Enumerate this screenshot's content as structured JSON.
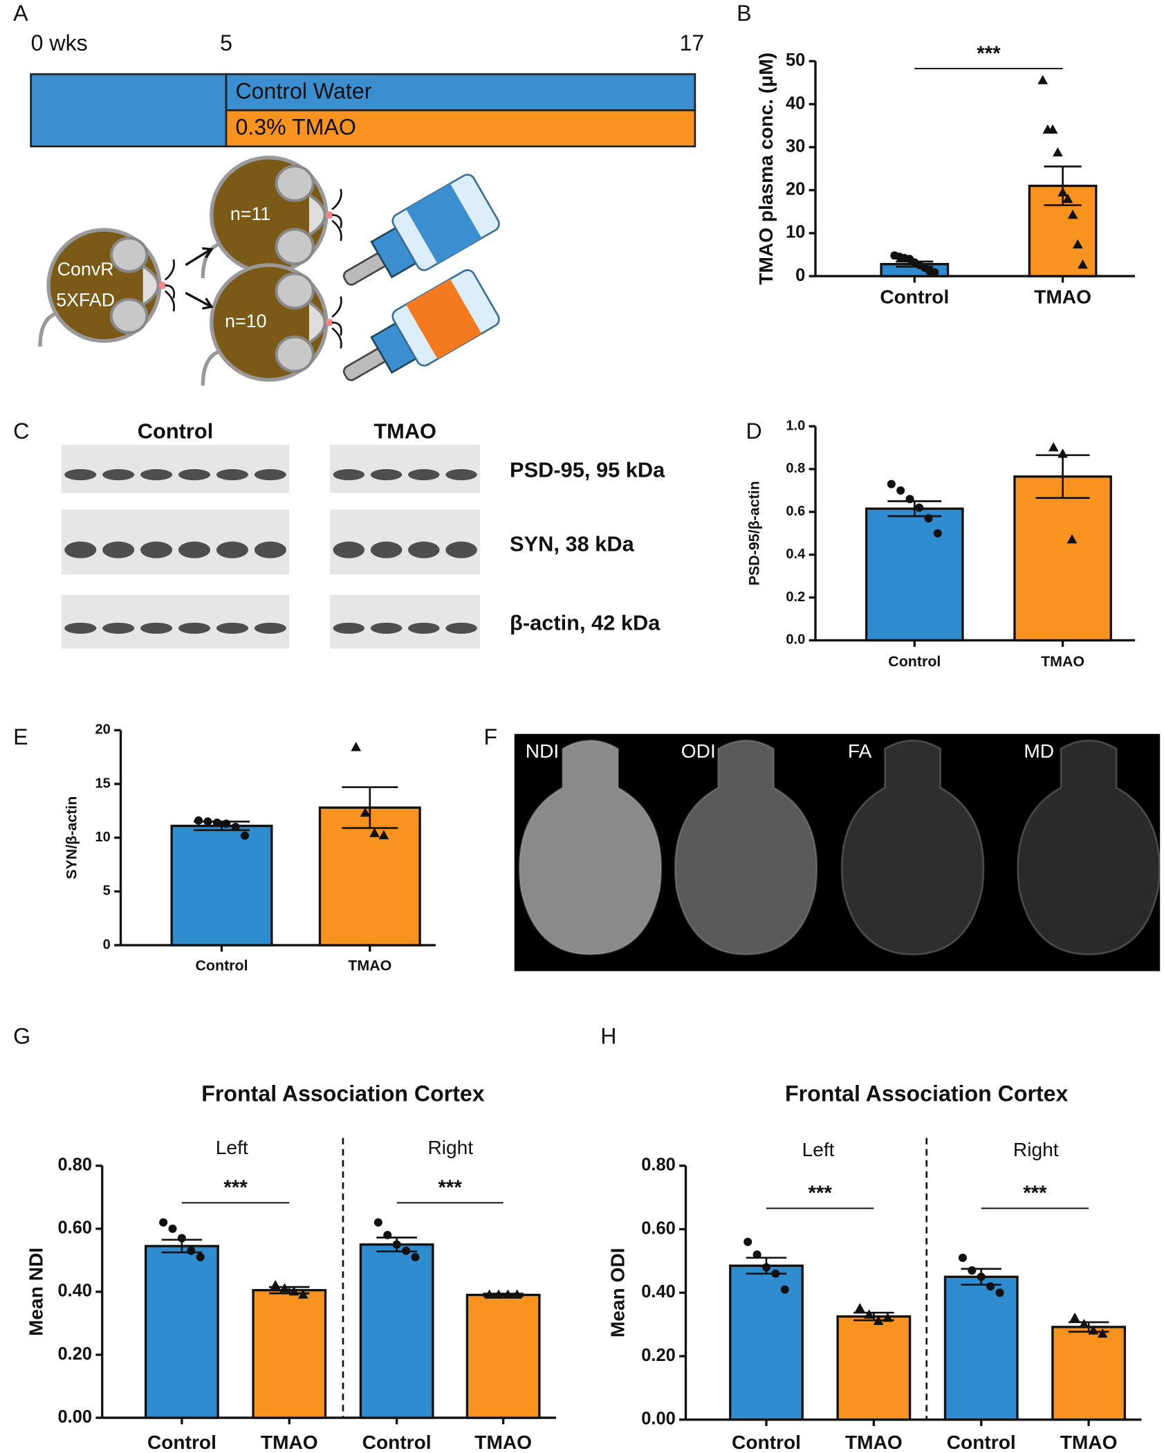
{
  "panel_labels": [
    "A",
    "B",
    "C",
    "D",
    "E",
    "F",
    "G",
    "H"
  ],
  "timeline": {
    "xlim": [
      0,
      17
    ],
    "ticks": [
      {
        "value": 0,
        "label": "0 wks"
      },
      5,
      17
    ],
    "rows": [
      "Control Water",
      "0.3% TMAO"
    ]
  },
  "cohorts": {
    "source": [
      "ConvR",
      "5XFAD"
    ],
    "groups": [
      "n=11",
      "n=10"
    ]
  },
  "western_blot": {
    "groups": [
      "Control",
      "TMAO"
    ],
    "bands": [
      "PSD-95, 95 kDa",
      "SYN, 38 kDa",
      "β-actin, 42 kDa"
    ]
  },
  "mri": {
    "maps": [
      "NDI",
      "ODI",
      "FA",
      "MD"
    ]
  },
  "chart_data": [
    {
      "panel": "B",
      "type": "bar",
      "ylabel": "TMAO plasma conc. (μM)",
      "categories": [
        "Control",
        "TMAO"
      ],
      "values": [
        2.8,
        21
      ],
      "errors": [
        0.6,
        4.5
      ],
      "points": [
        [
          4.8,
          4.5,
          4.2,
          4.0,
          3.2,
          2.6,
          2.0,
          1.2,
          0.9
        ],
        [
          45.5,
          34,
          34,
          28.7,
          19.4,
          17.9,
          14.2,
          7.3,
          2.6
        ]
      ],
      "colors": [
        "#2f8ccf",
        "#f7931e"
      ],
      "markers": [
        "circle",
        "triangle"
      ],
      "ylim": [
        0,
        50
      ],
      "yticks": [
        0,
        10,
        20,
        30,
        40,
        50
      ],
      "significance": [
        "***"
      ]
    },
    {
      "panel": "D",
      "type": "bar",
      "ylabel": "PSD-95/β-actin",
      "categories": [
        "Control",
        "TMAO"
      ],
      "values": [
        0.615,
        0.765
      ],
      "errors": [
        0.035,
        0.1
      ],
      "points": [
        [
          0.73,
          0.7,
          0.66,
          0.62,
          0.57,
          0.5
        ],
        [
          0.9,
          0.87,
          0.47
        ]
      ],
      "colors": [
        "#2f8ccf",
        "#f7931e"
      ],
      "markers": [
        "circle",
        "triangle"
      ],
      "ylim": [
        0,
        1
      ],
      "yticks": [
        {
          "value": 0,
          "label": "0.0"
        },
        0.2,
        0.4,
        0.6,
        0.8,
        {
          "value": 1,
          "label": "1.0"
        }
      ]
    },
    {
      "panel": "E",
      "type": "bar",
      "ylabel": "SYN/β-actin",
      "categories": [
        "Control",
        "TMAO"
      ],
      "values": [
        11.1,
        12.8
      ],
      "errors": [
        0.4,
        1.9
      ],
      "points": [
        [
          11.6,
          11.5,
          11.4,
          11.3,
          11.0,
          10.2
        ],
        [
          18.4,
          12.3,
          10.4,
          10.2
        ]
      ],
      "colors": [
        "#2f8ccf",
        "#f7931e"
      ],
      "markers": [
        "circle",
        "triangle"
      ],
      "ylim": [
        0,
        20
      ],
      "yticks": [
        0,
        5,
        10,
        15,
        20
      ]
    },
    {
      "panel": "G",
      "type": "bar",
      "title": "Frontal Association Cortex",
      "groups": [
        "Left",
        "Right"
      ],
      "ylabel": "Mean NDI",
      "categories": [
        "Control",
        "TMAO",
        "Control",
        "TMAO"
      ],
      "values": [
        0.545,
        0.405,
        0.55,
        0.39
      ],
      "errors": [
        0.02,
        0.01,
        0.022,
        0.004
      ],
      "points": [
        [
          0.62,
          0.6,
          0.57,
          0.53,
          0.51
        ],
        [
          0.42,
          0.41,
          0.4,
          0.39
        ],
        [
          0.62,
          0.58,
          0.55,
          0.53,
          0.51
        ],
        [
          0.39,
          0.39,
          0.39,
          0.39
        ]
      ],
      "colors": [
        "#2f8ccf",
        "#f7931e",
        "#2f8ccf",
        "#f7931e"
      ],
      "markers": [
        "circle",
        "triangle",
        "circle",
        "triangle"
      ],
      "ylim": [
        0,
        0.8
      ],
      "yticks": [
        {
          "value": 0,
          "label": "0.00"
        },
        {
          "value": 0.2,
          "label": "0.20"
        },
        {
          "value": 0.4,
          "label": "0.40"
        },
        {
          "value": 0.6,
          "label": "0.60"
        },
        {
          "value": 0.8,
          "label": "0.80"
        }
      ],
      "significance": [
        "***",
        "***"
      ]
    },
    {
      "panel": "H",
      "type": "bar",
      "title": "Frontal Association Cortex",
      "groups": [
        "Left",
        "Right"
      ],
      "ylabel": "Mean ODI",
      "categories": [
        "Control",
        "TMAO",
        "Control",
        "TMAO"
      ],
      "values": [
        0.485,
        0.325,
        0.45,
        0.292
      ],
      "errors": [
        0.025,
        0.012,
        0.025,
        0.015
      ],
      "points": [
        [
          0.56,
          0.52,
          0.48,
          0.46,
          0.41
        ],
        [
          0.35,
          0.33,
          0.31,
          0.32
        ],
        [
          0.51,
          0.47,
          0.45,
          0.42,
          0.4
        ],
        [
          0.32,
          0.3,
          0.28,
          0.27
        ]
      ],
      "colors": [
        "#2f8ccf",
        "#f7931e",
        "#2f8ccf",
        "#f7931e"
      ],
      "markers": [
        "circle",
        "triangle",
        "circle",
        "triangle"
      ],
      "ylim": [
        0,
        0.8
      ],
      "yticks": [
        {
          "value": 0,
          "label": "0.00"
        },
        {
          "value": 0.2,
          "label": "0.20"
        },
        {
          "value": 0.4,
          "label": "0.40"
        },
        {
          "value": 0.6,
          "label": "0.60"
        },
        {
          "value": 0.8,
          "label": "0.80"
        }
      ],
      "significance": [
        "***",
        "***"
      ]
    }
  ]
}
